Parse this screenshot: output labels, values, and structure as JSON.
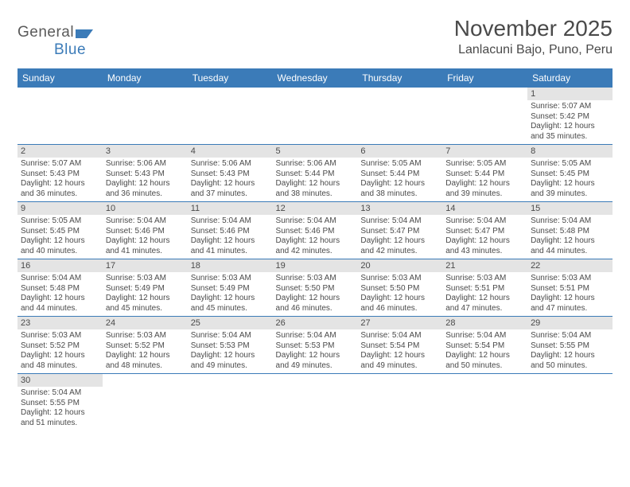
{
  "brand": {
    "general": "General",
    "blue": "Blue"
  },
  "title": "November 2025",
  "location": "Lanlacuni Bajo, Puno, Peru",
  "colors": {
    "header_bg": "#3b7bb8",
    "header_fg": "#ffffff",
    "daynum_bg": "#e4e4e4",
    "text": "#4a4a4a",
    "rule": "#3b7bb8",
    "page_bg": "#ffffff"
  },
  "typography": {
    "title_fontsize": 28,
    "location_fontsize": 16,
    "dayhead_fontsize": 12,
    "daynum_fontsize": 11,
    "body_fontsize": 10
  },
  "weekdays": [
    "Sunday",
    "Monday",
    "Tuesday",
    "Wednesday",
    "Thursday",
    "Friday",
    "Saturday"
  ],
  "weeks": [
    [
      null,
      null,
      null,
      null,
      null,
      null,
      {
        "n": "1",
        "sunrise": "5:07 AM",
        "sunset": "5:42 PM",
        "daylight": "12 hours and 35 minutes."
      }
    ],
    [
      {
        "n": "2",
        "sunrise": "5:07 AM",
        "sunset": "5:43 PM",
        "daylight": "12 hours and 36 minutes."
      },
      {
        "n": "3",
        "sunrise": "5:06 AM",
        "sunset": "5:43 PM",
        "daylight": "12 hours and 36 minutes."
      },
      {
        "n": "4",
        "sunrise": "5:06 AM",
        "sunset": "5:43 PM",
        "daylight": "12 hours and 37 minutes."
      },
      {
        "n": "5",
        "sunrise": "5:06 AM",
        "sunset": "5:44 PM",
        "daylight": "12 hours and 38 minutes."
      },
      {
        "n": "6",
        "sunrise": "5:05 AM",
        "sunset": "5:44 PM",
        "daylight": "12 hours and 38 minutes."
      },
      {
        "n": "7",
        "sunrise": "5:05 AM",
        "sunset": "5:44 PM",
        "daylight": "12 hours and 39 minutes."
      },
      {
        "n": "8",
        "sunrise": "5:05 AM",
        "sunset": "5:45 PM",
        "daylight": "12 hours and 39 minutes."
      }
    ],
    [
      {
        "n": "9",
        "sunrise": "5:05 AM",
        "sunset": "5:45 PM",
        "daylight": "12 hours and 40 minutes."
      },
      {
        "n": "10",
        "sunrise": "5:04 AM",
        "sunset": "5:46 PM",
        "daylight": "12 hours and 41 minutes."
      },
      {
        "n": "11",
        "sunrise": "5:04 AM",
        "sunset": "5:46 PM",
        "daylight": "12 hours and 41 minutes."
      },
      {
        "n": "12",
        "sunrise": "5:04 AM",
        "sunset": "5:46 PM",
        "daylight": "12 hours and 42 minutes."
      },
      {
        "n": "13",
        "sunrise": "5:04 AM",
        "sunset": "5:47 PM",
        "daylight": "12 hours and 42 minutes."
      },
      {
        "n": "14",
        "sunrise": "5:04 AM",
        "sunset": "5:47 PM",
        "daylight": "12 hours and 43 minutes."
      },
      {
        "n": "15",
        "sunrise": "5:04 AM",
        "sunset": "5:48 PM",
        "daylight": "12 hours and 44 minutes."
      }
    ],
    [
      {
        "n": "16",
        "sunrise": "5:04 AM",
        "sunset": "5:48 PM",
        "daylight": "12 hours and 44 minutes."
      },
      {
        "n": "17",
        "sunrise": "5:03 AM",
        "sunset": "5:49 PM",
        "daylight": "12 hours and 45 minutes."
      },
      {
        "n": "18",
        "sunrise": "5:03 AM",
        "sunset": "5:49 PM",
        "daylight": "12 hours and 45 minutes."
      },
      {
        "n": "19",
        "sunrise": "5:03 AM",
        "sunset": "5:50 PM",
        "daylight": "12 hours and 46 minutes."
      },
      {
        "n": "20",
        "sunrise": "5:03 AM",
        "sunset": "5:50 PM",
        "daylight": "12 hours and 46 minutes."
      },
      {
        "n": "21",
        "sunrise": "5:03 AM",
        "sunset": "5:51 PM",
        "daylight": "12 hours and 47 minutes."
      },
      {
        "n": "22",
        "sunrise": "5:03 AM",
        "sunset": "5:51 PM",
        "daylight": "12 hours and 47 minutes."
      }
    ],
    [
      {
        "n": "23",
        "sunrise": "5:03 AM",
        "sunset": "5:52 PM",
        "daylight": "12 hours and 48 minutes."
      },
      {
        "n": "24",
        "sunrise": "5:03 AM",
        "sunset": "5:52 PM",
        "daylight": "12 hours and 48 minutes."
      },
      {
        "n": "25",
        "sunrise": "5:04 AM",
        "sunset": "5:53 PM",
        "daylight": "12 hours and 49 minutes."
      },
      {
        "n": "26",
        "sunrise": "5:04 AM",
        "sunset": "5:53 PM",
        "daylight": "12 hours and 49 minutes."
      },
      {
        "n": "27",
        "sunrise": "5:04 AM",
        "sunset": "5:54 PM",
        "daylight": "12 hours and 49 minutes."
      },
      {
        "n": "28",
        "sunrise": "5:04 AM",
        "sunset": "5:54 PM",
        "daylight": "12 hours and 50 minutes."
      },
      {
        "n": "29",
        "sunrise": "5:04 AM",
        "sunset": "5:55 PM",
        "daylight": "12 hours and 50 minutes."
      }
    ],
    [
      {
        "n": "30",
        "sunrise": "5:04 AM",
        "sunset": "5:55 PM",
        "daylight": "12 hours and 51 minutes."
      },
      null,
      null,
      null,
      null,
      null,
      null
    ]
  ],
  "labels": {
    "sunrise": "Sunrise:",
    "sunset": "Sunset:",
    "daylight": "Daylight:"
  }
}
